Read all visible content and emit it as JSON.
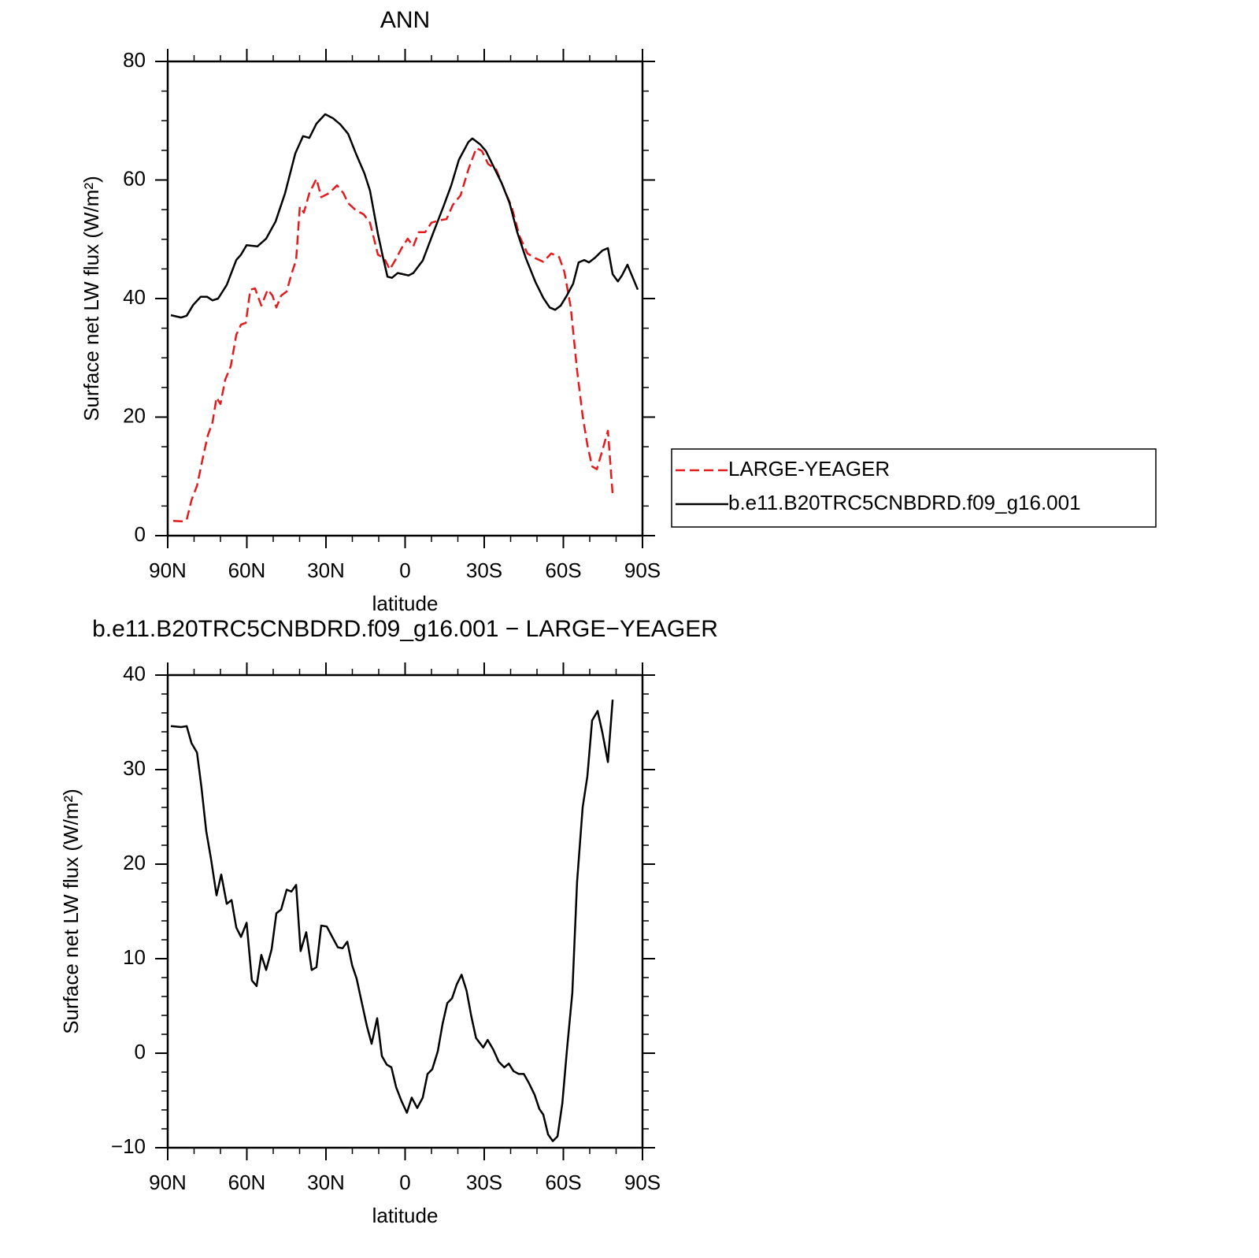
{
  "chart_data": [
    {
      "type": "line",
      "title": "ANN",
      "xlabel": "latitude",
      "ylabel": "Surface net LW flux (W/m²)",
      "xlim": [
        90,
        -90
      ],
      "xticks": [
        {
          "value": 90,
          "label": "90N"
        },
        {
          "value": 60,
          "label": "60N"
        },
        {
          "value": 30,
          "label": "30N"
        },
        0,
        {
          "value": -30,
          "label": "30S"
        },
        {
          "value": -60,
          "label": "60S"
        },
        {
          "value": -90,
          "label": "90S"
        }
      ],
      "ylim": [
        0,
        80
      ],
      "yticks": [
        0,
        20,
        40,
        60,
        80
      ],
      "series": [
        {
          "name": "LARGE-YEAGER",
          "color": "#e41a1c",
          "dash": true,
          "x": [
            87.9,
            84,
            82.8,
            81,
            78.9,
            76.6,
            74.8,
            73,
            71.5,
            70,
            68.2,
            66.1,
            64,
            62.2,
            60.4,
            58.7,
            56.9,
            54.5,
            52.1,
            50.3,
            48.8,
            47,
            44.9,
            43.1,
            41.3,
            39.9,
            38.4,
            36.3,
            33.6,
            31.8,
            28.8,
            25.8,
            23.4,
            21.6,
            18.7,
            15.7,
            13.3,
            10.3,
            7.9,
            5.8,
            3.7,
            1.3,
            -1,
            -3.1,
            -5.2,
            -7.6,
            -10,
            -13,
            -15.7,
            -18.1,
            -21,
            -24,
            -27,
            -29.1,
            -31.5,
            -34.5,
            -37.5,
            -40.4,
            -43.4,
            -46.4,
            -49.4,
            -52.4,
            -55.4,
            -58.4,
            -60.4,
            -62.8,
            -65.2,
            -67.3,
            -69.1,
            -70.9,
            -72.7,
            -74.8,
            -76.9,
            -78.7
          ],
          "values": [
            2.5,
            2.4,
            2.7,
            6,
            8.4,
            13.3,
            16.9,
            19.1,
            23.3,
            22.2,
            26.3,
            28.6,
            33.9,
            35.6,
            35.9,
            41.5,
            41.7,
            38.8,
            41.5,
            40.5,
            38.5,
            40.5,
            41.2,
            44.1,
            46.5,
            55.5,
            54.5,
            57.8,
            60.2,
            57.1,
            57.8,
            59.1,
            57.8,
            56.1,
            54.9,
            54.2,
            52.8,
            47.4,
            46.8,
            44.9,
            46.5,
            48.5,
            50.1,
            48.8,
            51.2,
            51.2,
            52.8,
            53.2,
            53.4,
            55.8,
            57.4,
            61.8,
            65.4,
            64.9,
            62.7,
            61.8,
            58.5,
            55.5,
            50.5,
            47.6,
            46.8,
            46.2,
            47.6,
            47,
            44.5,
            38.5,
            27.9,
            20.2,
            15.3,
            11.7,
            11.2,
            14.4,
            17.7,
            6.9
          ]
        },
        {
          "name": "b.e11.B20TRC5CNBDRD.f09_g16.001",
          "color": "#000000",
          "dash": false,
          "x": [
            88.8,
            84.9,
            82.8,
            80.4,
            77.5,
            75.1,
            73,
            70.9,
            67.6,
            64,
            62.2,
            60.1,
            58.1,
            56,
            52.7,
            49.1,
            45.5,
            41.6,
            38.7,
            36.3,
            33.6,
            30.3,
            27.3,
            24.6,
            21.6,
            18.7,
            15.4,
            13.3,
            10.3,
            8.5,
            6.7,
            5,
            2.8,
            0.7,
            -1.3,
            -3.1,
            -6.7,
            -10.6,
            -14.5,
            -17.5,
            -20.4,
            -24,
            -25.5,
            -28.5,
            -30.6,
            -33.6,
            -36.6,
            -39.6,
            -42.5,
            -45.8,
            -49.4,
            -52.4,
            -54.8,
            -56.9,
            -59,
            -61.3,
            -63.7,
            -65.8,
            -67.9,
            -69.7,
            -71.8,
            -74.8,
            -76.9,
            -78.7,
            -80.7,
            -82.2,
            -84.3,
            -88.2
          ],
          "values": [
            37.2,
            36.8,
            37.1,
            38.9,
            40.3,
            40.3,
            39.7,
            40,
            42.3,
            46.5,
            47.4,
            49,
            48.9,
            48.8,
            50.1,
            53,
            57.8,
            64.5,
            67.4,
            67.1,
            69.5,
            71.1,
            70.4,
            69.4,
            67.8,
            64.5,
            61.1,
            58.2,
            50.9,
            47.2,
            43.7,
            43.5,
            44.3,
            44.1,
            43.9,
            44.3,
            46.4,
            51,
            55.5,
            59.1,
            63.4,
            66.4,
            67,
            66,
            64.9,
            62.2,
            59.5,
            56.1,
            51.2,
            46.8,
            42.8,
            40.1,
            38.5,
            38.1,
            38.8,
            40.5,
            42.5,
            46.1,
            46.5,
            46.1,
            46.8,
            48.1,
            48.5,
            44.1,
            42.9,
            43.9,
            45.7,
            41.5
          ]
        }
      ]
    },
    {
      "type": "line",
      "title": "b.e11.B20TRC5CNBDRD.f09_g16.001 − LARGE−YEAGER",
      "xlabel": "latitude",
      "ylabel": "Surface net LW flux (W/m²)",
      "xlim": [
        90,
        -90
      ],
      "xticks": [
        {
          "value": 90,
          "label": "90N"
        },
        {
          "value": 60,
          "label": "60N"
        },
        {
          "value": 30,
          "label": "30N"
        },
        0,
        {
          "value": -30,
          "label": "30S"
        },
        {
          "value": -60,
          "label": "60S"
        },
        {
          "value": -90,
          "label": "90S"
        }
      ],
      "ylim": [
        -10,
        40
      ],
      "yticks": [
        {
          "value": -10,
          "label": "−10"
        },
        0,
        10,
        20,
        30,
        40
      ],
      "color": "#000000",
      "x": [
        88.8,
        84.9,
        82.8,
        81,
        78.9,
        77.2,
        75.4,
        73.6,
        71.5,
        69.7,
        67.6,
        65.8,
        64,
        62.2,
        60.1,
        58.1,
        56.3,
        54.5,
        52.7,
        50.6,
        48.8,
        47,
        44.9,
        43.1,
        41.3,
        39.6,
        37.5,
        35.4,
        33.6,
        31.8,
        29.7,
        27.6,
        25.5,
        23.7,
        21.9,
        20.1,
        18.4,
        16.3,
        14.5,
        12.7,
        10.6,
        8.8,
        7,
        5.2,
        3.4,
        1.3,
        -0.7,
        -2.5,
        -4.6,
        -6.7,
        -8.5,
        -10.3,
        -12.4,
        -14.2,
        -16,
        -17.8,
        -19.6,
        -21.4,
        -23.3,
        -25.1,
        -26.9,
        -29.6,
        -31.3,
        -33.4,
        -35.5,
        -37.6,
        -39.3,
        -41.1,
        -43.1,
        -45,
        -47,
        -49.1,
        -50.9,
        -52.4,
        -54.2,
        -56,
        -57.8,
        -59.6,
        -61.3,
        -63.4,
        -65.2,
        -67.3,
        -69.1,
        -70.9,
        -73,
        -74.8,
        -76.9,
        -78.7
      ],
      "values": [
        34.6,
        34.5,
        34.6,
        32.8,
        31.8,
        28.1,
        23.5,
        20.6,
        16.7,
        18.9,
        15.8,
        16.2,
        13.3,
        12.3,
        13.8,
        7.7,
        7.1,
        10.4,
        8.8,
        11,
        14.8,
        15.2,
        17.3,
        17.1,
        17.8,
        10.8,
        12.8,
        8.8,
        9.1,
        13.5,
        13.4,
        12.3,
        11.2,
        11.1,
        11.8,
        9.3,
        7.9,
        5.2,
        2.9,
        1,
        3.7,
        -0.3,
        -1.2,
        -1.5,
        -3.6,
        -5.1,
        -6.3,
        -4.7,
        -5.8,
        -4.7,
        -2.2,
        -1.7,
        0.2,
        3.1,
        5.3,
        5.8,
        7.3,
        8.3,
        6.6,
        3.9,
        1.6,
        0.6,
        1.4,
        0.4,
        -0.9,
        -1.5,
        -1.1,
        -1.9,
        -2.2,
        -2.2,
        -3.2,
        -4.4,
        -5.9,
        -6.5,
        -8.6,
        -9.3,
        -8.8,
        -5.3,
        0.2,
        6.4,
        18.1,
        26,
        29.3,
        35.2,
        36.2,
        33.9,
        30.8,
        37.4
      ]
    }
  ]
}
